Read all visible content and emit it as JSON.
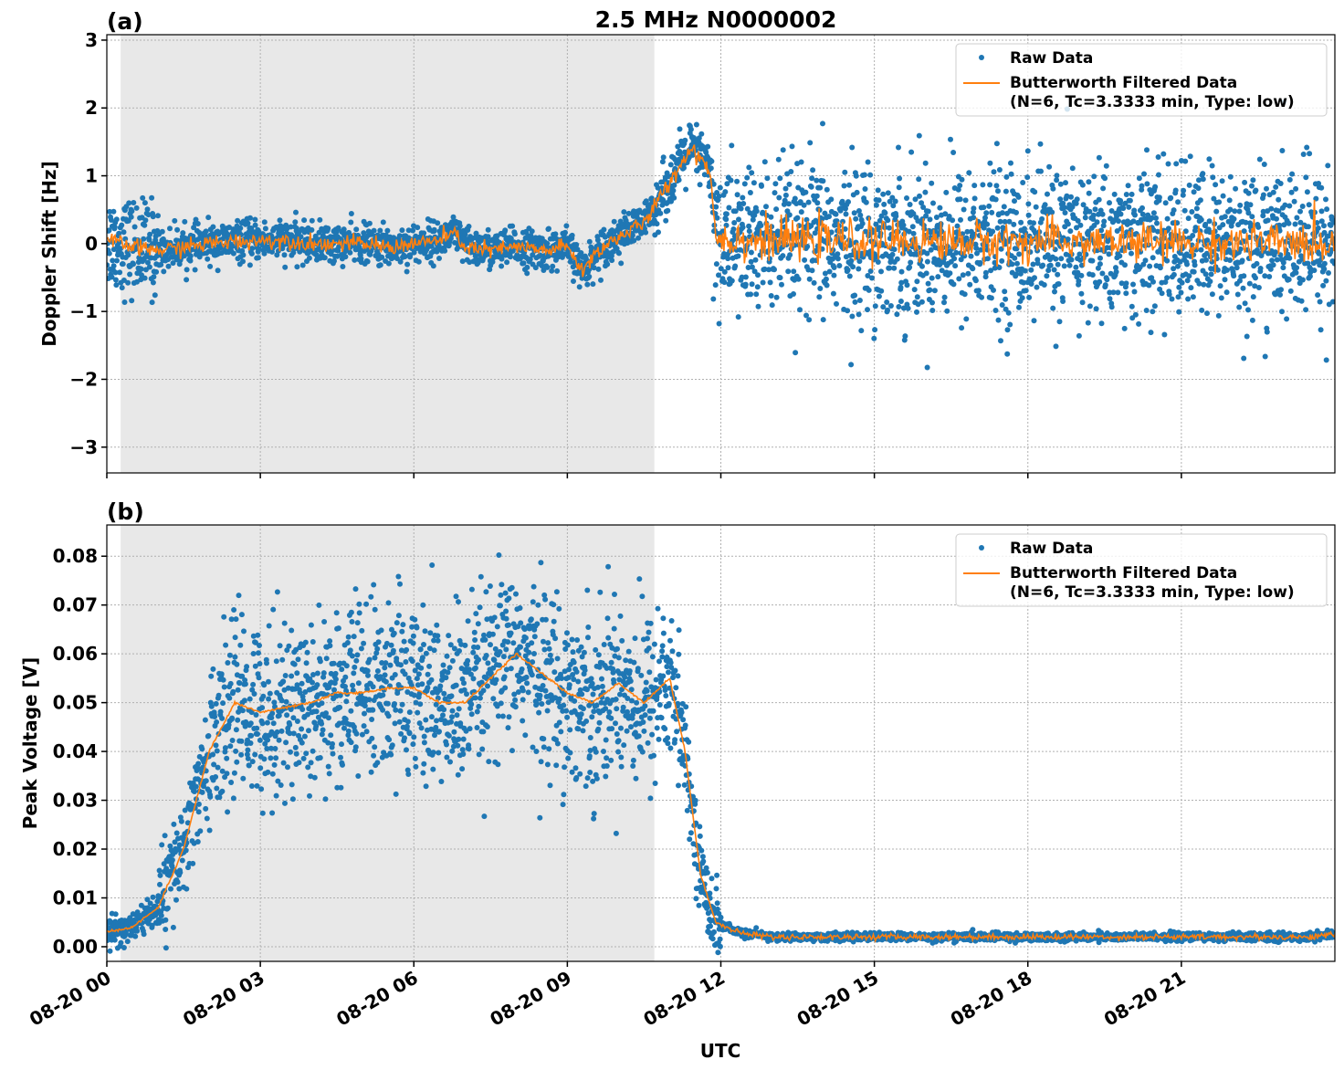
{
  "chart_data": [
    {
      "type": "scatter",
      "panel_label": "(a)",
      "title": "2.5 MHz N0000002",
      "xlabel": "",
      "ylabel": "Doppler Shift [Hz]",
      "xlim_hours": [
        0,
        24
      ],
      "ylim": [
        -3.38,
        3.08
      ],
      "yticks": [
        -3,
        -2,
        -1,
        0,
        1,
        2,
        3
      ],
      "ytick_labels": [
        "−3",
        "−2",
        "−1",
        "0",
        "1",
        "2",
        "3"
      ],
      "grid": true,
      "legend_placement": "top-right",
      "shaded_interval_hours": [
        0.27,
        10.7
      ],
      "colors": {
        "raw": "#1f77b4",
        "filtered": "#ff7f0e",
        "shade": "#e8e8e8"
      },
      "series": [
        {
          "name": "Raw Data",
          "kind": "scatter",
          "spread_by_interval": [
            [
              0,
              1,
              0.35
            ],
            [
              1,
              10.7,
              0.14
            ],
            [
              10.7,
              11.85,
              0.2
            ],
            [
              11.85,
              24,
              0.55
            ]
          ]
        },
        {
          "name": "Butterworth Filtered Data",
          "name_line2": "(N=6, Tc=3.3333 min, Type: low)",
          "kind": "line",
          "x_hours": [
            0,
            0.5,
            1,
            1.5,
            2,
            2.5,
            3,
            3.5,
            4,
            4.5,
            5,
            5.5,
            6,
            6.5,
            6.8,
            7,
            7.5,
            8,
            8.5,
            9,
            9.3,
            9.6,
            10,
            10.5,
            11,
            11.4,
            11.7,
            11.8,
            11.9,
            12.5,
            24
          ],
          "y": [
            0.05,
            -0.05,
            -0.1,
            -0.05,
            0.0,
            0.03,
            0.05,
            0.05,
            0.0,
            0.0,
            0.0,
            -0.05,
            0.0,
            0.05,
            0.15,
            -0.05,
            -0.1,
            -0.05,
            -0.1,
            -0.05,
            -0.4,
            -0.1,
            0.1,
            0.3,
            0.9,
            1.4,
            1.2,
            1.0,
            0.1,
            0.05,
            0.0
          ],
          "noise_after_hours": 11.9,
          "noise_amplitude": 0.15
        }
      ]
    },
    {
      "type": "scatter",
      "panel_label": "(b)",
      "xlabel": "UTC",
      "ylabel": "Peak Voltage [V]",
      "xlim_hours": [
        0,
        24
      ],
      "ylim": [
        -0.003,
        0.0864
      ],
      "yticks": [
        0,
        0.01,
        0.02,
        0.03,
        0.04,
        0.05,
        0.06,
        0.07,
        0.08
      ],
      "ytick_labels": [
        "0.00",
        "0.01",
        "0.02",
        "0.03",
        "0.04",
        "0.05",
        "0.06",
        "0.07",
        "0.08"
      ],
      "xticks_hours": [
        0,
        3,
        6,
        9,
        12,
        15,
        18,
        21
      ],
      "xtick_labels": [
        "08-20 00",
        "08-20 03",
        "08-20 06",
        "08-20 09",
        "08-20 12",
        "08-20 15",
        "08-20 18",
        "08-20 21"
      ],
      "grid": true,
      "legend_placement": "top-right",
      "shaded_interval_hours": [
        0.27,
        10.7
      ],
      "series": [
        {
          "name": "Raw Data",
          "kind": "scatter",
          "spread_by_interval": [
            [
              0,
              1,
              0.0015
            ],
            [
              1,
              2,
              0.005
            ],
            [
              2,
              11.2,
              0.009
            ],
            [
              11.2,
              12,
              0.004
            ],
            [
              12,
              24,
              0.0004
            ]
          ]
        },
        {
          "name": "Butterworth Filtered Data",
          "name_line2": "(N=6, Tc=3.3333 min, Type: low)",
          "kind": "line",
          "x_hours": [
            0,
            0.5,
            1,
            1.5,
            2,
            2.5,
            3,
            3.5,
            4,
            4.5,
            5,
            5.5,
            6,
            6.5,
            7,
            7.5,
            8,
            8.5,
            9,
            9.5,
            10,
            10.5,
            11,
            11.3,
            11.6,
            11.9,
            12.3,
            13,
            23.5,
            24
          ],
          "y": [
            0.003,
            0.004,
            0.008,
            0.02,
            0.04,
            0.05,
            0.048,
            0.049,
            0.05,
            0.052,
            0.052,
            0.053,
            0.053,
            0.05,
            0.05,
            0.055,
            0.06,
            0.056,
            0.052,
            0.05,
            0.054,
            0.05,
            0.055,
            0.04,
            0.015,
            0.005,
            0.003,
            0.002,
            0.002,
            0.0025
          ],
          "noise_after_hours": 12,
          "noise_amplitude": 0.0003
        }
      ]
    }
  ]
}
